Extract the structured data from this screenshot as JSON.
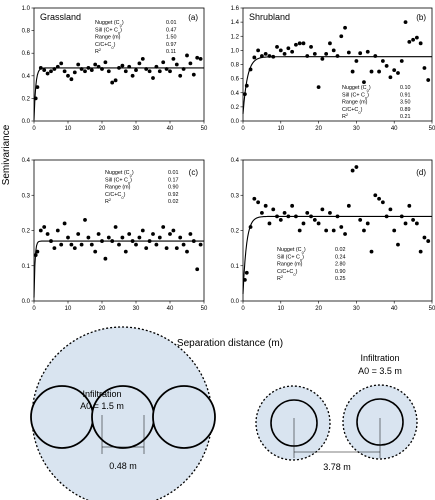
{
  "figure": {
    "ylabel": "Semivariance",
    "xlabel": "Separation distance (m)"
  },
  "chart_data": [
    {
      "type": "scatter",
      "letter": "(a)",
      "title": "Grassland",
      "xlim": [
        0,
        50
      ],
      "ylim": [
        0,
        1.0
      ],
      "xticks": [
        "0",
        "10",
        "20",
        "30",
        "40",
        "50"
      ],
      "yticks": [
        "0.0",
        "0.2",
        "0.4",
        "0.6",
        "0.8",
        "1.0"
      ],
      "stats": [
        {
          "label": "Nugget (C0)",
          "value": "0.01"
        },
        {
          "label": "Sill (C+ C0)",
          "value": "0.47"
        },
        {
          "label": "Range (m)",
          "value": "1.50"
        },
        {
          "label": "C/C+C0)",
          "value": "0.97"
        },
        {
          "label": "R2",
          "value": "0.11"
        }
      ],
      "model": {
        "nugget": 0.01,
        "sill": 0.47,
        "range": 1.5
      },
      "points_x": [
        0.5,
        1,
        2,
        3,
        4,
        5,
        6,
        7,
        8,
        9,
        10,
        11,
        12,
        13,
        14,
        15,
        16,
        17,
        18,
        19,
        20,
        21,
        22,
        23,
        24,
        25,
        26,
        27,
        28,
        29,
        30,
        31,
        32,
        33,
        34,
        35,
        36,
        37,
        38,
        39,
        40,
        41,
        42,
        43,
        44,
        45,
        46,
        47,
        48,
        49
      ],
      "points_y": [
        0.2,
        0.3,
        0.47,
        0.45,
        0.42,
        0.44,
        0.46,
        0.48,
        0.51,
        0.44,
        0.4,
        0.37,
        0.43,
        0.5,
        0.46,
        0.44,
        0.47,
        0.45,
        0.5,
        0.48,
        0.46,
        0.52,
        0.44,
        0.34,
        0.36,
        0.47,
        0.49,
        0.44,
        0.48,
        0.4,
        0.45,
        0.51,
        0.55,
        0.46,
        0.44,
        0.38,
        0.48,
        0.44,
        0.52,
        0.46,
        0.44,
        0.55,
        0.5,
        0.4,
        0.46,
        0.58,
        0.51,
        0.41,
        0.56,
        0.55
      ]
    },
    {
      "type": "scatter",
      "letter": "(b)",
      "title": "Shrubland",
      "xlim": [
        0,
        50
      ],
      "ylim": [
        0,
        1.6
      ],
      "xticks": [
        "0",
        "10",
        "20",
        "30",
        "40",
        "50"
      ],
      "yticks": [
        "0.0",
        "0.2",
        "0.4",
        "0.6",
        "0.8",
        "1.0",
        "1.2",
        "1.4",
        "1.6"
      ],
      "stats": [
        {
          "label": "Nugget (C0)",
          "value": "0.10"
        },
        {
          "label": "Sill (C+ C0)",
          "value": "0.91"
        },
        {
          "label": "Range (m)",
          "value": "3.50"
        },
        {
          "label": "C/C+C0)",
          "value": "0.89"
        },
        {
          "label": "R2",
          "value": "0.21"
        }
      ],
      "model": {
        "nugget": 0.1,
        "sill": 0.91,
        "range": 3.5
      },
      "points_x": [
        0.5,
        1,
        2,
        3,
        4,
        5,
        6,
        7,
        8,
        9,
        10,
        11,
        12,
        13,
        14,
        15,
        16,
        17,
        18,
        19,
        20,
        21,
        22,
        23,
        24,
        25,
        26,
        27,
        28,
        29,
        30,
        31,
        32,
        33,
        34,
        35,
        36,
        37,
        38,
        39,
        40,
        41,
        42,
        43,
        44,
        45,
        46,
        47,
        48,
        49
      ],
      "points_y": [
        0.38,
        0.5,
        0.73,
        0.9,
        1.0,
        0.92,
        0.95,
        0.92,
        0.91,
        1.05,
        1.0,
        0.95,
        1.03,
        0.98,
        1.08,
        1.1,
        1.1,
        0.92,
        1.05,
        0.95,
        0.48,
        0.88,
        0.95,
        1.1,
        1.0,
        0.92,
        1.2,
        1.32,
        0.97,
        0.7,
        0.85,
        0.96,
        0.55,
        0.98,
        0.7,
        0.92,
        0.7,
        0.85,
        0.78,
        0.62,
        0.72,
        0.68,
        0.85,
        1.4,
        1.12,
        1.15,
        1.18,
        1.1,
        0.75,
        0.58
      ]
    },
    {
      "type": "scatter",
      "letter": "(c)",
      "title": "",
      "xlim": [
        0,
        50
      ],
      "ylim": [
        0,
        0.4
      ],
      "xticks": [
        "0",
        "10",
        "20",
        "30",
        "40",
        "50"
      ],
      "yticks": [
        "0.0",
        "0.1",
        "0.2",
        "0.3",
        "0.4"
      ],
      "stats": [
        {
          "label": "Nugget (C0)",
          "value": "0.01"
        },
        {
          "label": "Sill (C+ C0)",
          "value": "0.17"
        },
        {
          "label": "Range (m)",
          "value": "0.90"
        },
        {
          "label": "C/C+C0)",
          "value": "0.92"
        },
        {
          "label": "R2",
          "value": "0.02"
        }
      ],
      "model": {
        "nugget": 0.01,
        "sill": 0.17,
        "range": 0.9
      },
      "points_x": [
        0.5,
        1,
        2,
        3,
        4,
        5,
        6,
        7,
        8,
        9,
        10,
        11,
        12,
        13,
        14,
        15,
        16,
        17,
        18,
        19,
        20,
        21,
        22,
        23,
        24,
        25,
        26,
        27,
        28,
        29,
        30,
        31,
        32,
        33,
        34,
        35,
        36,
        37,
        38,
        39,
        40,
        41,
        42,
        43,
        44,
        45,
        46,
        47,
        48,
        49
      ],
      "points_y": [
        0.13,
        0.14,
        0.2,
        0.21,
        0.19,
        0.17,
        0.15,
        0.2,
        0.16,
        0.22,
        0.18,
        0.16,
        0.15,
        0.19,
        0.16,
        0.23,
        0.18,
        0.16,
        0.14,
        0.19,
        0.17,
        0.12,
        0.18,
        0.17,
        0.21,
        0.16,
        0.18,
        0.14,
        0.19,
        0.17,
        0.16,
        0.18,
        0.2,
        0.15,
        0.17,
        0.19,
        0.16,
        0.18,
        0.21,
        0.15,
        0.19,
        0.2,
        0.15,
        0.18,
        0.16,
        0.14,
        0.19,
        0.17,
        0.09,
        0.16
      ]
    },
    {
      "type": "scatter",
      "letter": "(d)",
      "title": "",
      "xlim": [
        0,
        50
      ],
      "ylim": [
        0,
        0.4
      ],
      "xticks": [
        "0",
        "10",
        "20",
        "30",
        "40",
        "50"
      ],
      "yticks": [
        "0.0",
        "0.1",
        "0.2",
        "0.3",
        "0.4"
      ],
      "stats": [
        {
          "label": "Nugget (C0)",
          "value": "0.02"
        },
        {
          "label": "Sill (C+ C0)",
          "value": "0.24"
        },
        {
          "label": "Range (m)",
          "value": "2.80"
        },
        {
          "label": "C/C+C0)",
          "value": "0.90"
        },
        {
          "label": "R2",
          "value": "0.25"
        }
      ],
      "model": {
        "nugget": 0.02,
        "sill": 0.24,
        "range": 2.8
      },
      "points_x": [
        0.5,
        1,
        2,
        3,
        4,
        5,
        6,
        7,
        8,
        9,
        10,
        11,
        12,
        13,
        14,
        15,
        16,
        17,
        18,
        19,
        20,
        21,
        22,
        23,
        24,
        25,
        26,
        27,
        28,
        29,
        30,
        31,
        32,
        33,
        34,
        35,
        36,
        37,
        38,
        39,
        40,
        41,
        42,
        43,
        44,
        45,
        46,
        47,
        48,
        49
      ],
      "points_y": [
        0.06,
        0.08,
        0.21,
        0.29,
        0.28,
        0.25,
        0.27,
        0.22,
        0.26,
        0.24,
        0.23,
        0.25,
        0.24,
        0.27,
        0.24,
        0.2,
        0.22,
        0.25,
        0.24,
        0.23,
        0.22,
        0.26,
        0.2,
        0.25,
        0.2,
        0.24,
        0.21,
        0.19,
        0.27,
        0.37,
        0.38,
        0.23,
        0.2,
        0.22,
        0.14,
        0.3,
        0.29,
        0.28,
        0.24,
        0.26,
        0.2,
        0.16,
        0.24,
        0.22,
        0.27,
        0.23,
        0.22,
        0.14,
        0.18,
        0.17
      ]
    }
  ],
  "diagram": {
    "left": {
      "title": "Infiltration",
      "a0": "A0 = 1.5 m",
      "distance": "0.48 m"
    },
    "right": {
      "title": "Infiltration",
      "a0": "A0 = 3.5 m",
      "distance": "3.78 m"
    }
  }
}
